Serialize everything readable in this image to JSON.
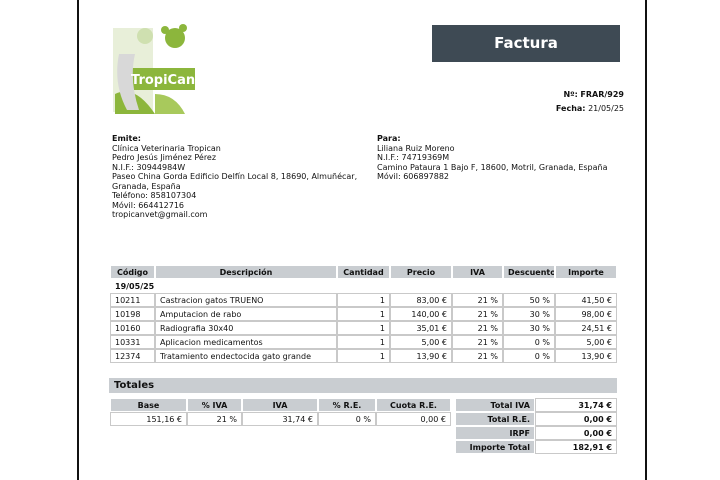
{
  "logo": {
    "name": "TropiCan"
  },
  "header": {
    "title": "Factura",
    "number_label": "Nº:",
    "number": "FRAR/929",
    "date_label": "Fecha:",
    "date": "21/05/25"
  },
  "issuer": {
    "label": "Emite:",
    "lines": [
      "Clínica Veterinaria Tropican",
      "Pedro Jesús Jiménez Pérez",
      "N.I.F.: 30944984W",
      "Paseo China Gorda Edificio Delfín Local 8, 18690, Almuñécar,",
      "Granada, España",
      "Teléfono: 858107304",
      "Móvil: 664412716",
      "tropicanvet@gmail.com"
    ]
  },
  "recipient": {
    "label": "Para:",
    "lines": [
      "Liliana Ruiz Moreno",
      "N.I.F.: 74719369M",
      "Camino Pataura 1 Bajo F, 18600, Motril, Granada, España",
      "Móvil: 606897882"
    ]
  },
  "table": {
    "columns": [
      "Código",
      "Descripción",
      "Cantidad",
      "Precio",
      "IVA",
      "Descuento",
      "Importe"
    ],
    "groups": [
      {
        "date": "19/05/25",
        "rows": [
          [
            "10211",
            "Castracion gatos TRUENO",
            "1",
            "83,00 €",
            "21 %",
            "50 %",
            "41,50 €"
          ],
          [
            "10198",
            "Amputacion de rabo",
            "1",
            "140,00 €",
            "21 %",
            "30 %",
            "98,00 €"
          ],
          [
            "10160",
            "Radiografia 30x40",
            "1",
            "35,01 €",
            "21 %",
            "30 %",
            "24,51 €"
          ],
          [
            "10331",
            "Aplicacion medicamentos",
            "1",
            "5,00 €",
            "21 %",
            "0 %",
            "5,00 €"
          ],
          [
            "12374",
            "Tratamiento endectocida gato grande",
            "1",
            "13,90 €",
            "21 %",
            "0 %",
            "13,90 €"
          ]
        ]
      }
    ]
  },
  "totals": {
    "title": "Totales",
    "tax_columns": [
      "Base",
      "% IVA",
      "IVA",
      "% R.E.",
      "Cuota R.E."
    ],
    "tax_rows": [
      [
        "151,16 €",
        "21 %",
        "31,74 €",
        "0 %",
        "0,00 €"
      ]
    ],
    "summary": [
      [
        "Total IVA",
        "31,74 €"
      ],
      [
        "Total R.E.",
        "0,00 €"
      ],
      [
        "IRPF",
        "0,00 €"
      ],
      [
        "Importe Total",
        "182,91 €"
      ]
    ]
  }
}
